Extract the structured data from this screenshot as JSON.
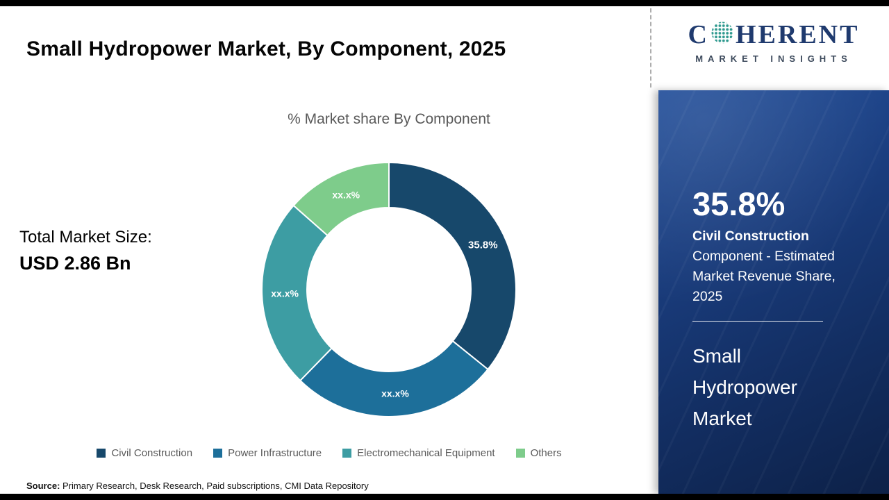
{
  "page": {
    "title": "Small Hydropower Market, By Component, 2025",
    "total_market_label": "Total Market Size:",
    "total_market_value": "USD 2.86 Bn",
    "source_label": "Source:",
    "source_text": " Primary Research, Desk Research, Paid subscriptions, CMI Data Repository"
  },
  "chart_data": {
    "type": "pie",
    "subtype": "donut",
    "title": "% Market share By Component",
    "categories": [
      "Civil Construction",
      "Power Infrastructure",
      "Electromechanical Equipment",
      "Others"
    ],
    "values": [
      35.8,
      26.5,
      24.2,
      13.5
    ],
    "labels": [
      "35.8%",
      "xx.x%",
      "xx.x%",
      "xx.x%"
    ],
    "colors": [
      "#17486b",
      "#1d6f9a",
      "#3d9da3",
      "#7ecc8b"
    ],
    "legend_position": "bottom",
    "start_angle_deg": 0,
    "direction": "clockwise"
  },
  "sidebar": {
    "logo": {
      "brand_left": "C",
      "brand_right": "HERENT",
      "brand_sub": "MARKET INSIGHTS",
      "globe_icon_color": "#2f9a8f"
    },
    "highlight_value": "35.8%",
    "highlight_bold": "Civil Construction",
    "highlight_rest": " Component - Estimated Market Revenue Share, 2025",
    "market_name": "Small Hydropower Market"
  }
}
